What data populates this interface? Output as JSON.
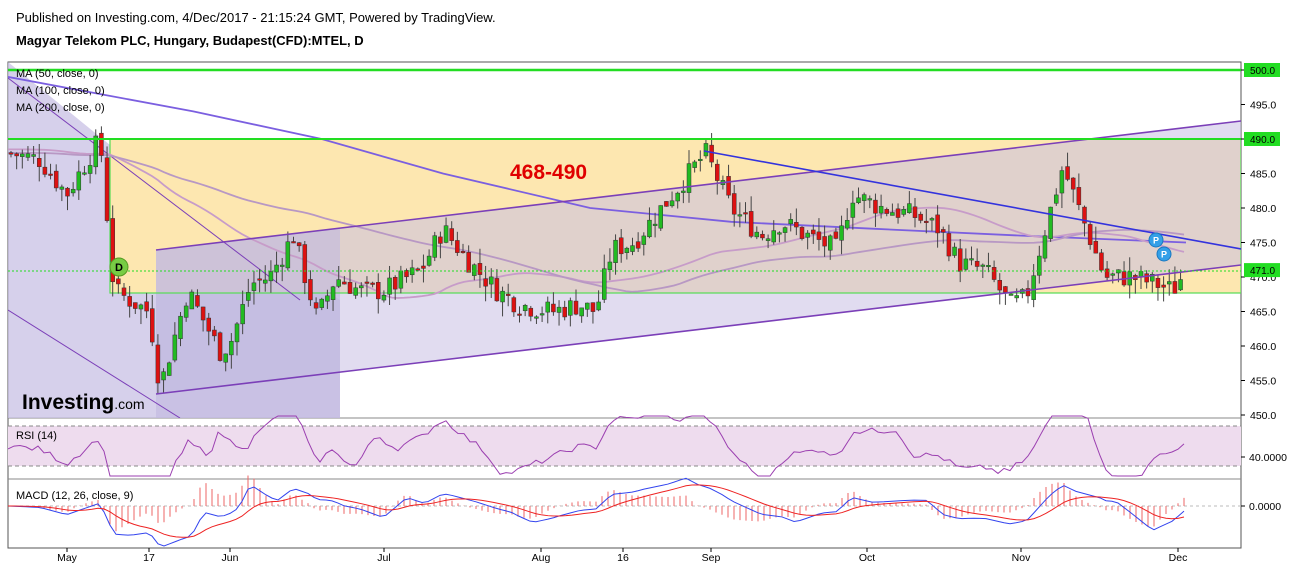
{
  "header": {
    "published": "Published on Investing.com, 4/Dec/2017 - 21:15:24 GMT, Powered by TradingView.",
    "title": "Magyar Telekom PLC, Hungary, Budapest(CFD):MTEL, D"
  },
  "main_panel": {
    "legend": [
      "MA (50, close, 0)",
      "MA (100, close, 0)",
      "MA (200, close, 0)"
    ],
    "y_ticks": [
      "500.0",
      "495.0",
      "490.0",
      "485.0",
      "480.0",
      "475.0",
      "470.0",
      "465.0",
      "460.0",
      "455.0",
      "450.0"
    ],
    "price_labels": [
      {
        "text": "500.0",
        "value": 500,
        "color": "#22dd22"
      },
      {
        "text": "490.0",
        "value": 490,
        "color": "#22dd22"
      },
      {
        "text": "471.0",
        "value": 471,
        "color": "#22dd22"
      }
    ],
    "zone_text": "468-490",
    "event_marker_d": "D",
    "event_marker_p": "P",
    "logo_main": "Investing",
    "logo_suffix": ".com"
  },
  "rsi_panel": {
    "title": "RSI (14)",
    "tick": "40.0000"
  },
  "macd_panel": {
    "title": "MACD (12, 26, close, 9)",
    "tick": "0.0000"
  },
  "x_axis": {
    "labels": [
      "May",
      "17",
      "Jun",
      "Jul",
      "Aug",
      "16",
      "Sep",
      "Oct",
      "Nov",
      "Dec"
    ]
  },
  "colors": {
    "up": "#22bb22",
    "down": "#dd1111",
    "support_line": "#22dd22",
    "zone_fill": "#fde7b0",
    "channel_line": "#7b3fb8",
    "downtrend_line": "#3333dd",
    "ma50": "#c79cc9",
    "ma100": "#b898c4",
    "ma200": "#7b5fe0",
    "annotation": "#e00000"
  },
  "chart_data": {
    "type": "candlestick",
    "title": "Magyar Telekom PLC, Hungary, Budapest(CFD):MTEL, D",
    "y_range": [
      450,
      501
    ],
    "horizontal_levels": [
      500,
      490,
      471,
      468
    ],
    "zone": [
      468,
      490
    ],
    "close_path": [
      {
        "x": "Apr 26",
        "close": 488
      },
      {
        "x": "May 1",
        "close": 487
      },
      {
        "x": "May 5",
        "close": 482
      },
      {
        "x": "May 10",
        "close": 490
      },
      {
        "x": "May 12",
        "close": 468
      },
      {
        "x": "May 17",
        "close": 465
      },
      {
        "x": "May 19",
        "close": 454
      },
      {
        "x": "May 24",
        "close": 468
      },
      {
        "x": "May 30",
        "close": 459
      },
      {
        "x": "Jun 1",
        "close": 461
      },
      {
        "x": "Jun 5",
        "close": 469
      },
      {
        "x": "Jun 9",
        "close": 470
      },
      {
        "x": "Jun 14",
        "close": 476
      },
      {
        "x": "Jun 19",
        "close": 464
      },
      {
        "x": "Jun 23",
        "close": 470
      },
      {
        "x": "Jun 28",
        "close": 468
      },
      {
        "x": "Jul 3",
        "close": 468
      },
      {
        "x": "Jul 10",
        "close": 471
      },
      {
        "x": "Jul 14",
        "close": 477
      },
      {
        "x": "Jul 19",
        "close": 472
      },
      {
        "x": "Jul 24",
        "close": 468
      },
      {
        "x": "Jul 28",
        "close": 466
      },
      {
        "x": "Aug 3",
        "close": 465
      },
      {
        "x": "Aug 8",
        "close": 466
      },
      {
        "x": "Aug 11",
        "close": 465
      },
      {
        "x": "Aug 14",
        "close": 474
      },
      {
        "x": "Aug 18",
        "close": 475
      },
      {
        "x": "Aug 23",
        "close": 480
      },
      {
        "x": "Aug 28",
        "close": 485
      },
      {
        "x": "Aug 31",
        "close": 488
      },
      {
        "x": "Sep 5",
        "close": 480
      },
      {
        "x": "Sep 11",
        "close": 476
      },
      {
        "x": "Sep 15",
        "close": 478
      },
      {
        "x": "Sep 20",
        "close": 476
      },
      {
        "x": "Sep 26",
        "close": 474
      },
      {
        "x": "Sep 29",
        "close": 482
      },
      {
        "x": "Oct 5",
        "close": 480
      },
      {
        "x": "Oct 11",
        "close": 479
      },
      {
        "x": "Oct 16",
        "close": 477
      },
      {
        "x": "Oct 20",
        "close": 472
      },
      {
        "x": "Oct 25",
        "close": 471
      },
      {
        "x": "Oct 30",
        "close": 466
      },
      {
        "x": "Nov 2",
        "close": 467
      },
      {
        "x": "Nov 6",
        "close": 478
      },
      {
        "x": "Nov 9",
        "close": 486
      },
      {
        "x": "Nov 14",
        "close": 476
      },
      {
        "x": "Nov 17",
        "close": 470
      },
      {
        "x": "Nov 22",
        "close": 470
      },
      {
        "x": "Nov 27",
        "close": 469
      },
      {
        "x": "Nov 30",
        "close": 468
      },
      {
        "x": "Dec 4",
        "close": 471
      }
    ],
    "ma200": [
      {
        "x": "Apr 26",
        "v": 499
      },
      {
        "x": "May 25",
        "v": 494
      },
      {
        "x": "Jun 20",
        "v": 490
      },
      {
        "x": "Jul 14",
        "v": 485
      },
      {
        "x": "Aug 10",
        "v": 480
      },
      {
        "x": "Sep 5",
        "v": 478
      },
      {
        "x": "Oct 3",
        "v": 477
      },
      {
        "x": "Nov 1",
        "v": 476
      },
      {
        "x": "Dec 4",
        "v": 475
      }
    ]
  }
}
